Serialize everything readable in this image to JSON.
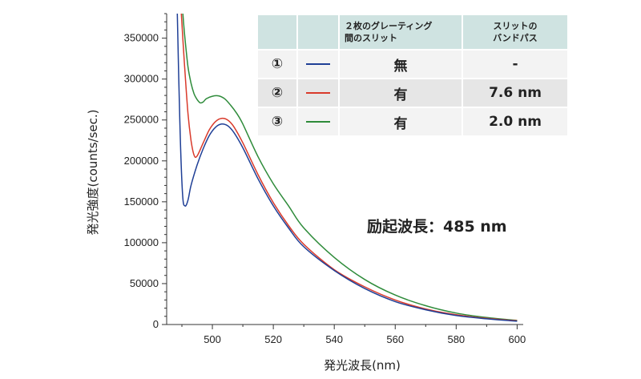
{
  "chart_data": {
    "type": "line",
    "xlabel": "発光波長(nm)",
    "ylabel": "発光強度(counts/sec.)",
    "xlim": [
      485,
      602
    ],
    "ylim": [
      0,
      380000
    ],
    "x_ticks": [
      500,
      520,
      540,
      560,
      580,
      600
    ],
    "y_ticks": [
      0,
      50000,
      100000,
      150000,
      200000,
      250000,
      300000,
      350000
    ],
    "x_tick_labels": [
      "500",
      "520",
      "540",
      "560",
      "580",
      "600"
    ],
    "y_tick_labels": [
      "0",
      "50000",
      "100000",
      "150000",
      "200000",
      "250000",
      "300000",
      "350000"
    ],
    "annotation": "励起波長：485 nm",
    "series": [
      {
        "name": "①",
        "color": "#1f3f96",
        "x": [
          488.5,
          489.3,
          490.2,
          491,
          492,
          493,
          495,
          497,
          499,
          501,
          503,
          505,
          507,
          510,
          515,
          520,
          525,
          530,
          540,
          550,
          560,
          570,
          580,
          590,
          600
        ],
        "y": [
          380000,
          250000,
          160000,
          145000,
          152000,
          170000,
          195000,
          215000,
          231000,
          241000,
          245000,
          243000,
          235000,
          216000,
          178000,
          145000,
          118000,
          95000,
          66000,
          44000,
          28000,
          18000,
          11000,
          7000,
          4000
        ]
      },
      {
        "name": "②",
        "color": "#d93a2b",
        "x": [
          489.8,
          490.8,
          492,
          493,
          494,
          495,
          497,
          499,
          501,
          503,
          505,
          507,
          510,
          515,
          520,
          525,
          530,
          540,
          550,
          560,
          570,
          580,
          590,
          600
        ],
        "y": [
          380000,
          320000,
          258000,
          225000,
          207000,
          206000,
          222000,
          238000,
          248000,
          252000,
          250000,
          242000,
          222000,
          183000,
          149000,
          121000,
          98000,
          67000,
          46000,
          30000,
          19000,
          12000,
          7500,
          4500
        ]
      },
      {
        "name": "③",
        "color": "#2e8b3a",
        "x": [
          490.3,
          491,
          492,
          493,
          494,
          495,
          496,
          497,
          498,
          500,
          502,
          504,
          506,
          508,
          510,
          515,
          520,
          525,
          530,
          540,
          550,
          560,
          570,
          580,
          590,
          600
        ],
        "y": [
          380000,
          350000,
          315000,
          295000,
          282000,
          275000,
          271000,
          272000,
          276000,
          279000,
          279500,
          276000,
          268000,
          258000,
          245000,
          205000,
          172000,
          145000,
          118000,
          82000,
          55000,
          36000,
          23000,
          14000,
          8500,
          5000
        ]
      }
    ]
  },
  "legend": {
    "headers": {
      "grating_line1": "２枚のグレーティング",
      "grating_line2": "間のスリット",
      "band_line1": "スリットの",
      "band_line2": "バンドパス"
    },
    "rows": [
      {
        "num": "①",
        "grating": "無",
        "band": "-",
        "color": "#1f3f96"
      },
      {
        "num": "②",
        "grating": "有",
        "band": "7.6 nm",
        "color": "#d93a2b"
      },
      {
        "num": "③",
        "grating": "有",
        "band": "2.0 nm",
        "color": "#2e8b3a"
      }
    ]
  }
}
